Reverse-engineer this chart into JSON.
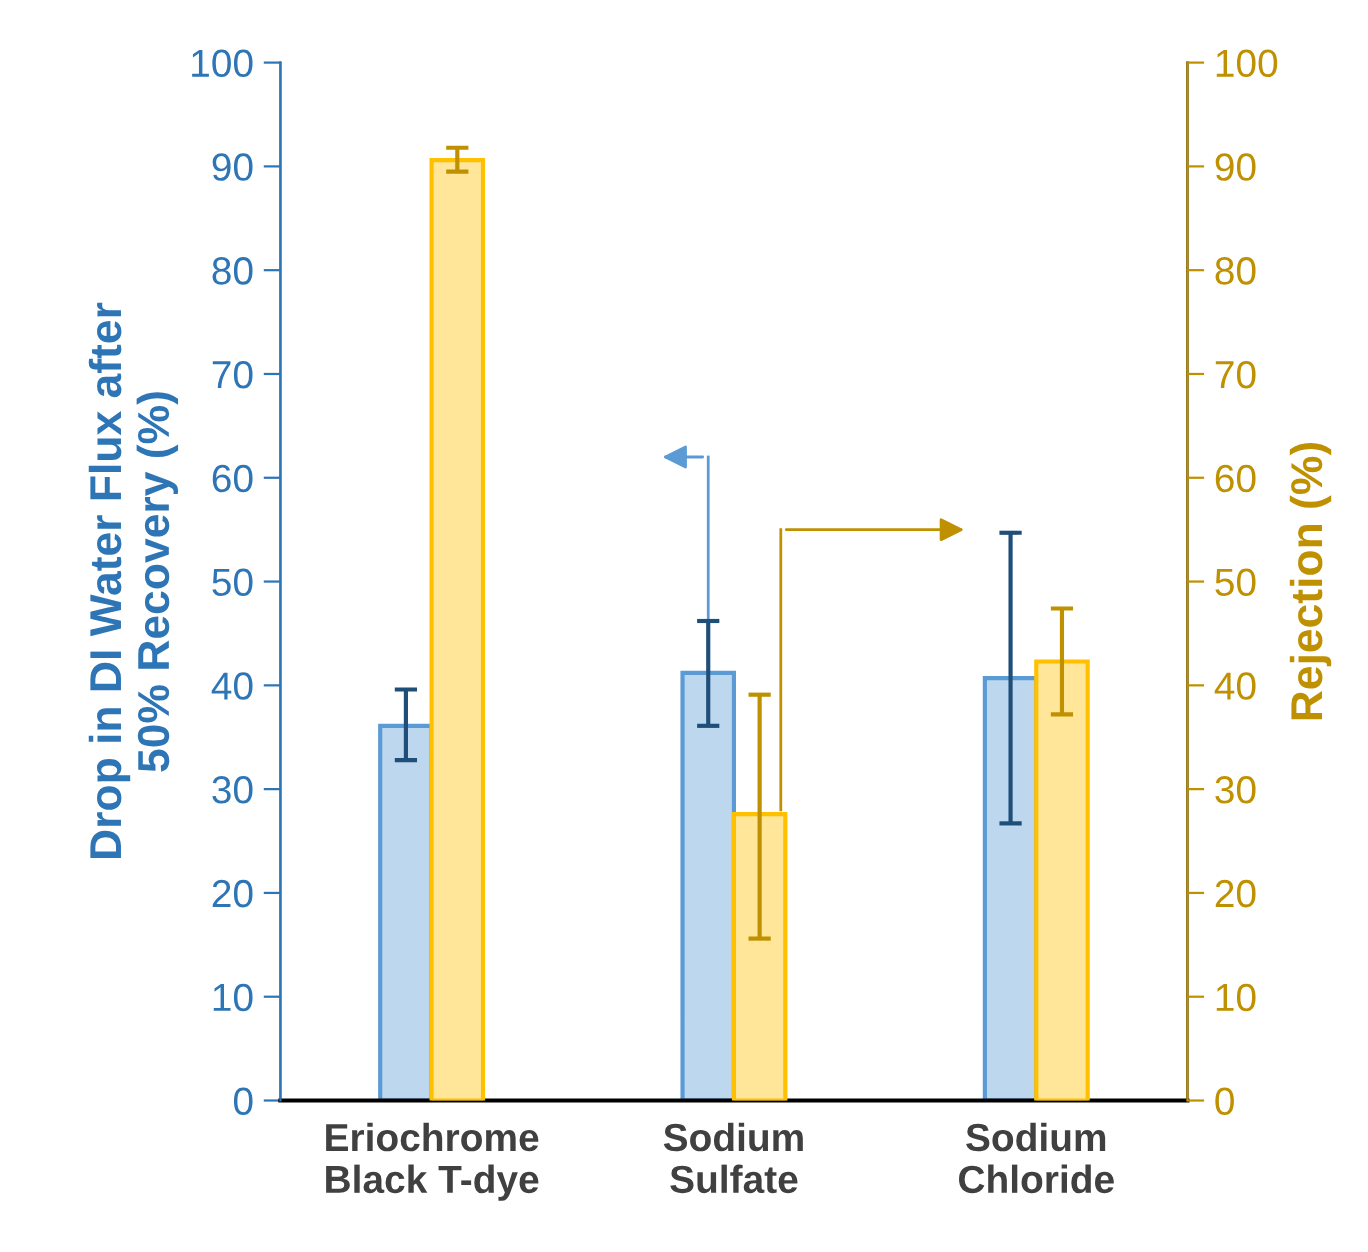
{
  "chart_data": {
    "type": "bar",
    "ylabel": "Drop in DI Water Flux after\n50% Recovery (%)",
    "y2label": "Rejection (%)",
    "categories": [
      "Eriochrome\nBlack T-dye",
      "Sodium\nSulfate",
      "Sodium\nChloride"
    ],
    "series": [
      {
        "color": "#bdd7ee",
        "values": [
          36.1,
          41.2,
          40.7
        ],
        "errors": [
          [
            32.8,
            39.6
          ],
          [
            36.1,
            46.2
          ],
          [
            26.7,
            54.7
          ]
        ]
      },
      {
        "color": "#ffe699",
        "axis": "y2",
        "values": [
          90.6,
          27.6,
          42.3
        ],
        "errors": [
          [
            89.5,
            91.8
          ],
          [
            15.6,
            39.1
          ],
          [
            37.2,
            47.4
          ]
        ]
      }
    ],
    "ylim": [
      0,
      100
    ],
    "yticks": [
      0,
      10,
      20,
      30,
      40,
      50,
      60,
      70,
      80,
      90,
      100
    ],
    "y2lim": [
      0,
      100
    ],
    "y2ticks": [
      0,
      10,
      20,
      30,
      40,
      50,
      60,
      70,
      80,
      90,
      100
    ],
    "grid": false
  }
}
